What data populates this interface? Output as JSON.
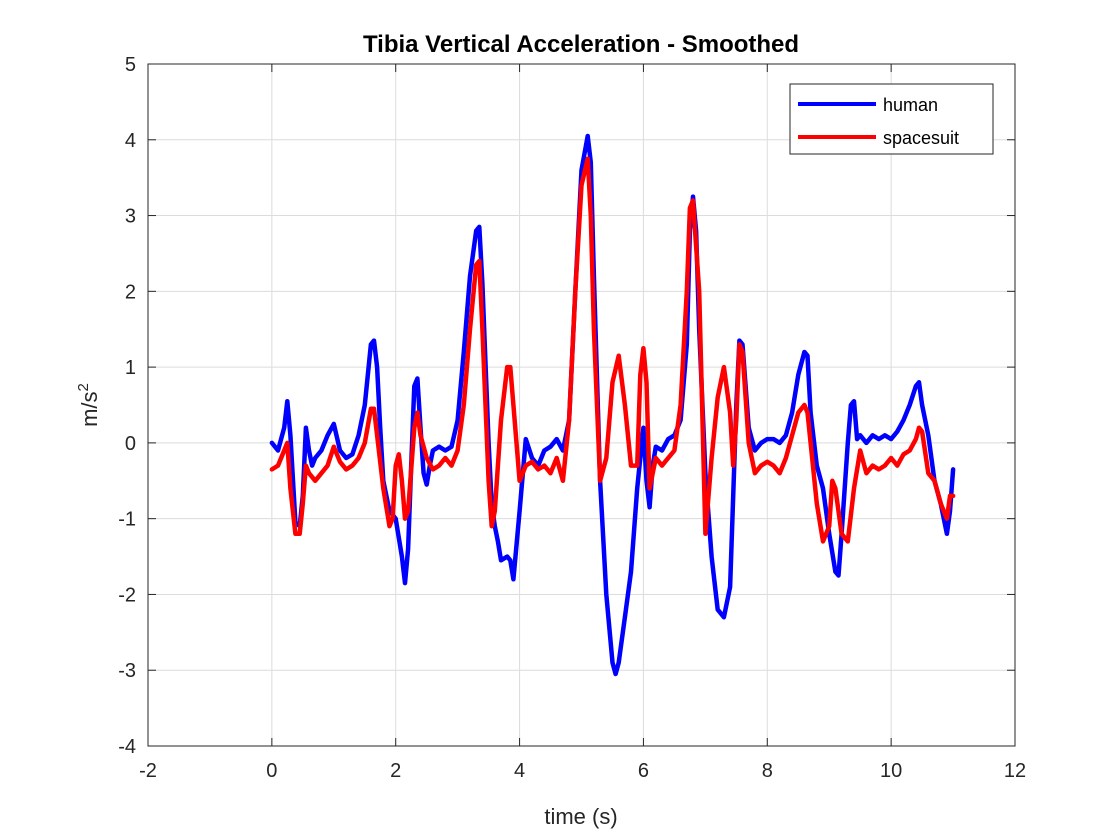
{
  "chart_data": {
    "type": "line",
    "title": "Tibia Vertical Acceleration - Smoothed",
    "xlabel": "time (s)",
    "ylabel_base": "m/s",
    "ylabel_sup": "2",
    "xlim": [
      -2,
      12
    ],
    "ylim": [
      -4,
      5
    ],
    "xticks": [
      -2,
      0,
      2,
      4,
      6,
      8,
      10,
      12
    ],
    "yticks": [
      -4,
      -3,
      -2,
      -1,
      0,
      1,
      2,
      3,
      4,
      5
    ],
    "grid": true,
    "legend_position": "top-right",
    "series": [
      {
        "name": "human",
        "color": "#0000ff",
        "x": [
          0,
          0.1,
          0.2,
          0.25,
          0.3,
          0.38,
          0.45,
          0.5,
          0.55,
          0.6,
          0.65,
          0.7,
          0.8,
          0.9,
          1.0,
          1.1,
          1.2,
          1.3,
          1.4,
          1.5,
          1.6,
          1.65,
          1.7,
          1.75,
          1.8,
          1.9,
          2.0,
          2.1,
          2.15,
          2.2,
          2.25,
          2.3,
          2.35,
          2.4,
          2.45,
          2.5,
          2.55,
          2.6,
          2.7,
          2.8,
          2.9,
          3.0,
          3.1,
          3.2,
          3.3,
          3.35,
          3.4,
          3.5,
          3.55,
          3.6,
          3.65,
          3.7,
          3.8,
          3.85,
          3.9,
          4.0,
          4.1,
          4.2,
          4.3,
          4.4,
          4.5,
          4.6,
          4.7,
          4.8,
          4.9,
          5.0,
          5.1,
          5.15,
          5.2,
          5.3,
          5.4,
          5.5,
          5.55,
          5.6,
          5.7,
          5.8,
          5.9,
          6.0,
          6.05,
          6.1,
          6.15,
          6.2,
          6.3,
          6.4,
          6.5,
          6.6,
          6.7,
          6.75,
          6.8,
          6.85,
          6.9,
          7.0,
          7.1,
          7.2,
          7.3,
          7.4,
          7.5,
          7.55,
          7.6,
          7.7,
          7.8,
          7.9,
          8.0,
          8.1,
          8.2,
          8.3,
          8.4,
          8.5,
          8.6,
          8.65,
          8.7,
          8.8,
          8.9,
          9.0,
          9.1,
          9.15,
          9.2,
          9.3,
          9.35,
          9.4,
          9.45,
          9.5,
          9.6,
          9.7,
          9.8,
          9.9,
          10.0,
          10.1,
          10.2,
          10.3,
          10.4,
          10.45,
          10.5,
          10.6,
          10.7,
          10.8,
          10.9,
          10.95,
          11.0
        ],
        "values": [
          0,
          -0.1,
          0.2,
          0.55,
          0.1,
          -1.05,
          -1.1,
          -0.7,
          0.2,
          -0.1,
          -0.3,
          -0.2,
          -0.1,
          0.1,
          0.25,
          -0.1,
          -0.2,
          -0.15,
          0.1,
          0.5,
          1.3,
          1.35,
          1.0,
          0.2,
          -0.5,
          -0.9,
          -1.0,
          -1.5,
          -1.85,
          -1.4,
          -0.3,
          0.75,
          0.85,
          0.2,
          -0.4,
          -0.55,
          -0.3,
          -0.1,
          -0.05,
          -0.1,
          -0.05,
          0.3,
          1.2,
          2.2,
          2.8,
          2.85,
          2.1,
          0.0,
          -0.8,
          -1.1,
          -1.3,
          -1.55,
          -1.5,
          -1.55,
          -1.8,
          -0.9,
          0.05,
          -0.2,
          -0.3,
          -0.1,
          -0.05,
          0.05,
          -0.1,
          0.3,
          2.0,
          3.6,
          4.05,
          3.7,
          2.2,
          -0.5,
          -2.0,
          -2.9,
          -3.05,
          -2.9,
          -2.3,
          -1.7,
          -0.6,
          0.2,
          -0.5,
          -0.85,
          -0.3,
          -0.05,
          -0.1,
          0.05,
          0.1,
          0.3,
          1.3,
          2.8,
          3.25,
          2.8,
          1.5,
          -0.4,
          -1.5,
          -2.2,
          -2.3,
          -1.9,
          0.5,
          1.35,
          1.3,
          0.2,
          -0.1,
          0.0,
          0.05,
          0.05,
          0.0,
          0.1,
          0.4,
          0.9,
          1.2,
          1.15,
          0.4,
          -0.3,
          -0.6,
          -1.2,
          -1.7,
          -1.75,
          -1.2,
          0.0,
          0.5,
          0.55,
          0.05,
          0.1,
          0.0,
          0.1,
          0.05,
          0.1,
          0.05,
          0.15,
          0.3,
          0.5,
          0.75,
          0.8,
          0.5,
          0.1,
          -0.5,
          -0.8,
          -1.2,
          -0.9,
          -0.35
        ]
      },
      {
        "name": "spacesuit",
        "color": "#ff0000",
        "x": [
          0,
          0.1,
          0.2,
          0.25,
          0.3,
          0.38,
          0.45,
          0.5,
          0.55,
          0.6,
          0.7,
          0.8,
          0.9,
          1.0,
          1.1,
          1.2,
          1.3,
          1.4,
          1.5,
          1.6,
          1.65,
          1.7,
          1.8,
          1.9,
          1.95,
          2.0,
          2.05,
          2.1,
          2.15,
          2.2,
          2.3,
          2.35,
          2.4,
          2.5,
          2.6,
          2.7,
          2.8,
          2.9,
          3.0,
          3.1,
          3.2,
          3.3,
          3.35,
          3.4,
          3.5,
          3.55,
          3.6,
          3.7,
          3.8,
          3.85,
          3.9,
          4.0,
          4.1,
          4.2,
          4.3,
          4.4,
          4.5,
          4.6,
          4.7,
          4.8,
          4.9,
          5.0,
          5.1,
          5.15,
          5.2,
          5.3,
          5.4,
          5.5,
          5.6,
          5.7,
          5.8,
          5.9,
          5.95,
          6.0,
          6.05,
          6.1,
          6.2,
          6.3,
          6.4,
          6.5,
          6.6,
          6.7,
          6.75,
          6.8,
          6.9,
          7.0,
          7.1,
          7.2,
          7.3,
          7.4,
          7.45,
          7.5,
          7.55,
          7.6,
          7.7,
          7.8,
          7.9,
          8.0,
          8.1,
          8.2,
          8.3,
          8.4,
          8.5,
          8.6,
          8.65,
          8.7,
          8.8,
          8.9,
          9.0,
          9.05,
          9.1,
          9.2,
          9.3,
          9.4,
          9.5,
          9.6,
          9.7,
          9.8,
          9.9,
          10.0,
          10.1,
          10.2,
          10.3,
          10.4,
          10.45,
          10.5,
          10.6,
          10.7,
          10.8,
          10.9,
          10.95,
          11.0
        ],
        "values": [
          -0.35,
          -0.3,
          -0.1,
          0.0,
          -0.6,
          -1.2,
          -1.2,
          -0.8,
          -0.3,
          -0.4,
          -0.5,
          -0.4,
          -0.3,
          -0.05,
          -0.25,
          -0.35,
          -0.3,
          -0.2,
          0.0,
          0.45,
          0.45,
          0.1,
          -0.6,
          -1.1,
          -1.0,
          -0.3,
          -0.15,
          -0.5,
          -1.0,
          -0.9,
          0.2,
          0.4,
          0.1,
          -0.2,
          -0.35,
          -0.3,
          -0.2,
          -0.3,
          -0.1,
          0.5,
          1.5,
          2.35,
          2.4,
          1.5,
          -0.5,
          -1.1,
          -0.9,
          0.3,
          1.0,
          1.0,
          0.5,
          -0.5,
          -0.3,
          -0.25,
          -0.35,
          -0.3,
          -0.4,
          -0.2,
          -0.5,
          0.3,
          2.0,
          3.4,
          3.75,
          3.0,
          1.5,
          -0.5,
          -0.2,
          0.8,
          1.15,
          0.5,
          -0.3,
          -0.3,
          0.9,
          1.25,
          0.8,
          -0.6,
          -0.2,
          -0.3,
          -0.2,
          -0.1,
          0.5,
          2.0,
          3.1,
          3.2,
          2.0,
          -1.2,
          -0.2,
          0.6,
          1.0,
          0.4,
          -0.3,
          0.3,
          1.3,
          1.2,
          0.0,
          -0.4,
          -0.3,
          -0.25,
          -0.3,
          -0.4,
          -0.2,
          0.1,
          0.4,
          0.5,
          0.4,
          0.0,
          -0.8,
          -1.3,
          -1.1,
          -0.5,
          -0.6,
          -1.2,
          -1.3,
          -0.6,
          -0.1,
          -0.4,
          -0.3,
          -0.35,
          -0.3,
          -0.2,
          -0.3,
          -0.15,
          -0.1,
          0.05,
          0.2,
          0.15,
          -0.4,
          -0.5,
          -0.8,
          -1.0,
          -0.7,
          -0.7
        ]
      }
    ]
  }
}
